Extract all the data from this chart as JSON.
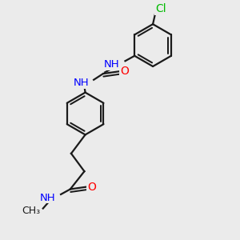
{
  "bg_color": "#ebebeb",
  "bond_color": "#1a1a1a",
  "N_color": "#0000ff",
  "O_color": "#ff0000",
  "Cl_color": "#00bb00",
  "H_color": "#708090",
  "line_width": 1.6,
  "font_size": 9.5,
  "ring_r": 0.45,
  "xlim": [
    -1.2,
    2.8
  ],
  "ylim": [
    -2.8,
    2.2
  ]
}
